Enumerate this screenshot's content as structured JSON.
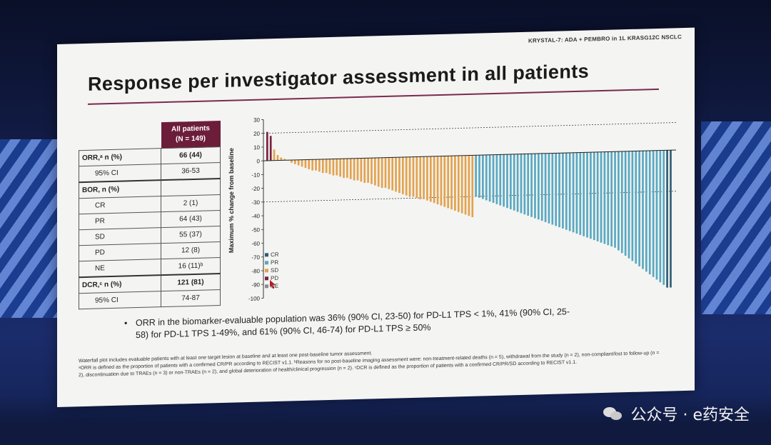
{
  "header": {
    "study_label": "KRYSTAL-7: ADA + PEMBRO in 1L KRASG12C NSCLC",
    "title": "Response per investigator assessment in all patients"
  },
  "table": {
    "column_header_line1": "All patients",
    "column_header_line2": "(N = 149)",
    "rows": [
      {
        "label": "ORR,ᵃ n (%)",
        "value": "66 (44)"
      },
      {
        "label": "95% CI",
        "value": "36-53"
      },
      {
        "label": "BOR, n (%)",
        "value": ""
      },
      {
        "label": "CR",
        "value": "2 (1)"
      },
      {
        "label": "PR",
        "value": "64 (43)"
      },
      {
        "label": "SD",
        "value": "55 (37)"
      },
      {
        "label": "PD",
        "value": "12 (8)"
      },
      {
        "label": "NE",
        "value": "16 (11)ᵇ"
      },
      {
        "label": "DCR,ᶜ n (%)",
        "value": "121 (81)"
      },
      {
        "label": "95% CI",
        "value": "74-87"
      }
    ]
  },
  "chart_data": {
    "type": "bar",
    "ylabel": "Maximum % change from baseline",
    "ylim": [
      -100,
      30
    ],
    "yticks": [
      30,
      20,
      10,
      0,
      -10,
      -20,
      -30,
      -40,
      -50,
      -60,
      -70,
      -80,
      -90,
      -100
    ],
    "reference_lines": [
      20,
      -30
    ],
    "legend": [
      "CR",
      "PR",
      "SD",
      "PD",
      "NE"
    ],
    "colors": {
      "CR": "#2e5d73",
      "PR": "#58a8c2",
      "SD": "#e3a24d",
      "PD": "#7a2040",
      "NE": "#8a8a8a"
    },
    "series": [
      {
        "name": "PD",
        "values": [
          21,
          18
        ]
      },
      {
        "name": "SD",
        "values": [
          8,
          4,
          2,
          1,
          0,
          -2,
          -3,
          -4,
          -5,
          -6,
          -7,
          -8,
          -8,
          -9,
          -10,
          -10,
          -11,
          -12,
          -12,
          -13,
          -14,
          -14,
          -15,
          -16,
          -16,
          -17,
          -18,
          -18,
          -19,
          -20,
          -21,
          -22,
          -22,
          -23,
          -24,
          -25,
          -26,
          -27,
          -28,
          -29,
          -29,
          -30,
          -31,
          -31,
          -32,
          -33,
          -34,
          -35,
          -36,
          -37,
          -38,
          -39,
          -40,
          -41,
          -42,
          -43,
          -44,
          -45
        ]
      },
      {
        "name": "PR",
        "values": [
          -30,
          -31,
          -32,
          -33,
          -34,
          -35,
          -36,
          -37,
          -38,
          -39,
          -40,
          -41,
          -42,
          -43,
          -44,
          -45,
          -46,
          -47,
          -48,
          -49,
          -50,
          -51,
          -52,
          -53,
          -54,
          -55,
          -56,
          -57,
          -58,
          -59,
          -60,
          -61,
          -62,
          -63,
          -64,
          -65,
          -66,
          -67,
          -68,
          -69,
          -70,
          -72,
          -74,
          -76,
          -78,
          -80,
          -82,
          -84,
          -86,
          -88,
          -90,
          -92,
          -94,
          -96,
          -98
        ]
      },
      {
        "name": "CR",
        "values": [
          -100,
          -100
        ]
      }
    ]
  },
  "bullet_text": "ORR in the biomarker-evaluable population was 36% (90% CI, 23-50) for PD-L1 TPS < 1%, 41% (90% CI, 25-58) for PD-L1 TPS 1-49%, and 61% (90% CI, 46-74) for PD-L1 TPS ≥ 50%",
  "footnotes": [
    "Waterfall plot includes evaluable patients with at least one target lesion at baseline and at least one post-baseline tumor assessment.",
    "ᵃORR is defined as the proportion of patients with a confirmed CR/PR according to RECIST v1.1. ᵇReasons for no post-baseline imaging assessment were: non-treatment-related deaths (n = 5), withdrawal from the study (n = 2), non-compliant/lost to follow-up (n = 2), discontinuation due to TRAEs (n = 3) or non-TRAEs (n = 2), and global deterioration of health/clinical progression (n = 2). ᶜDCR is defined as the proportion of patients with a confirmed CR/PR/SD according to RECIST v1.1."
  ],
  "watermark": "公众号 · e药安全"
}
